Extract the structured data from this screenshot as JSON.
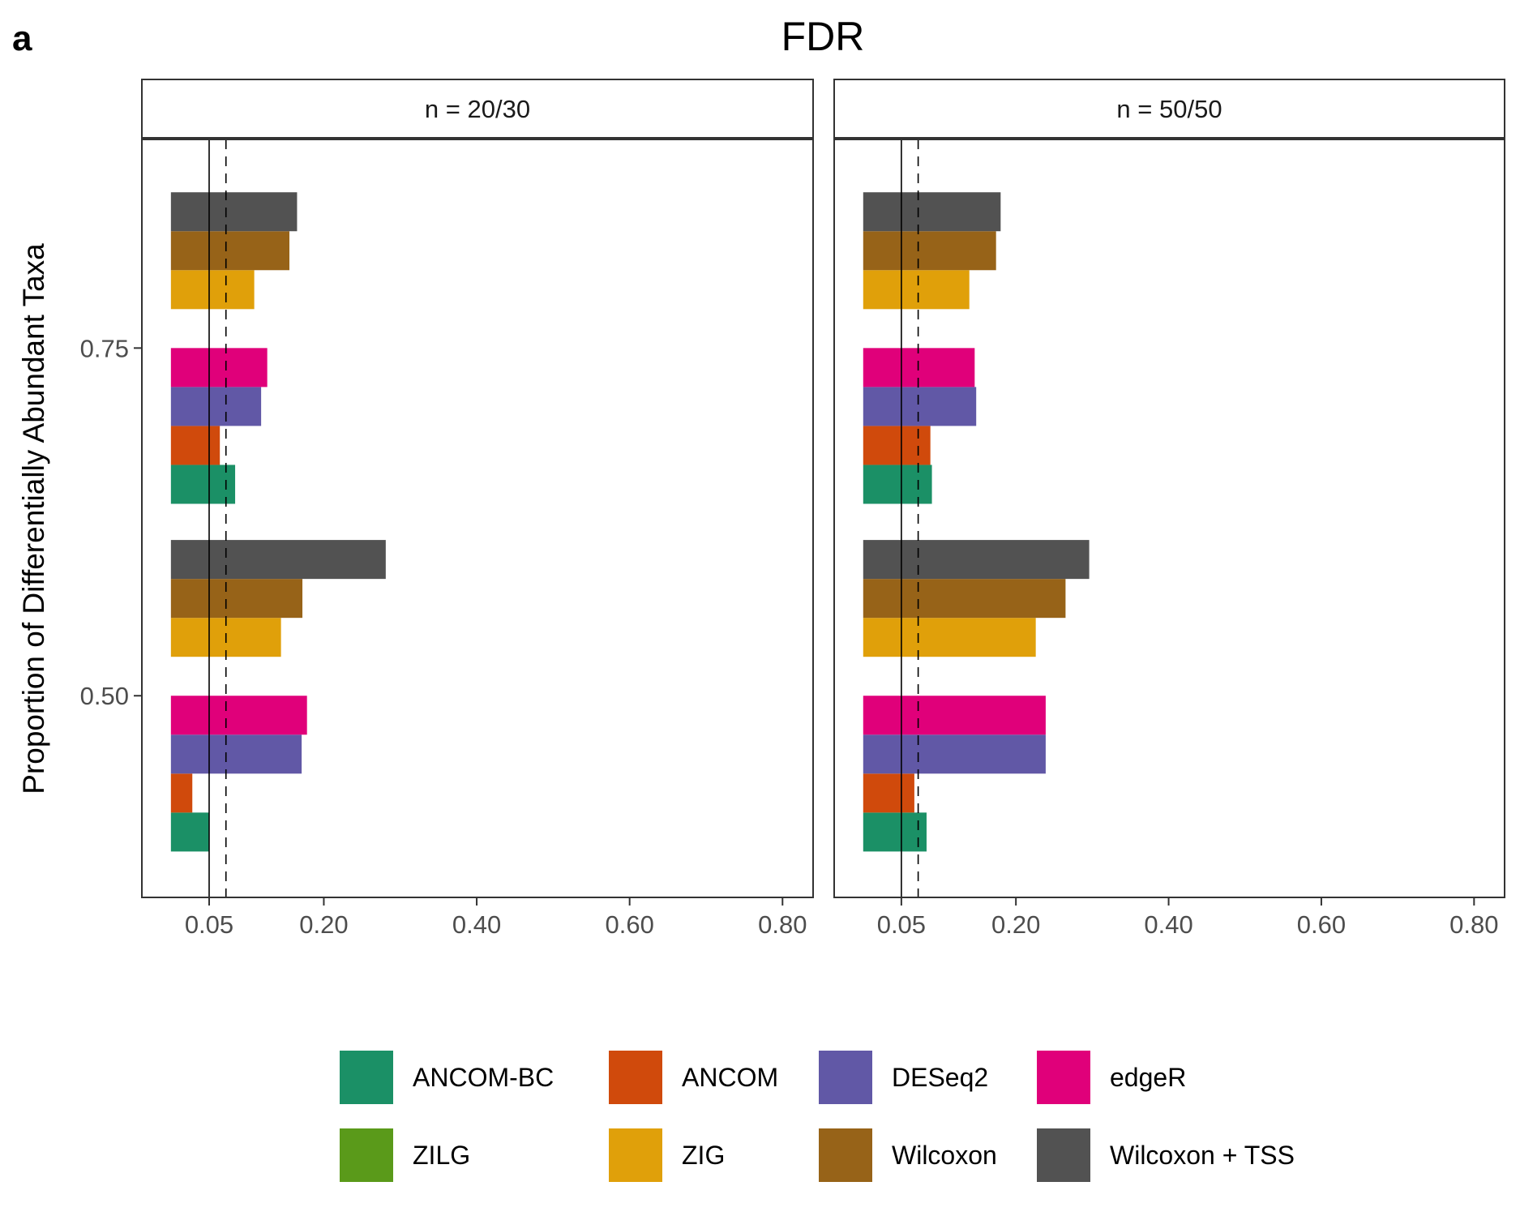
{
  "chart_data": {
    "type": "bar",
    "orientation": "horizontal",
    "tag": "a",
    "title": "FDR",
    "ylabel": "Proportion of Differentially Abundant Taxa",
    "xlabel": "",
    "x_ticks": [
      "0.05",
      "0.20",
      "0.40",
      "0.60",
      "0.80"
    ],
    "x_tick_values": [
      0.05,
      0.2,
      0.4,
      0.6,
      0.8
    ],
    "xlim": [
      -0.038,
      0.84
    ],
    "y_ticks": [
      "0.50",
      "0.75"
    ],
    "y_tick_values": [
      0.5,
      0.75
    ],
    "ylim": [
      0.355,
      0.9
    ],
    "bar_left": 0.0,
    "reference_lines": [
      {
        "value": 0.05,
        "style": "solid"
      },
      {
        "value": 0.072,
        "style": "dashed",
        "facet": "n = 20/30"
      },
      {
        "value": 0.072,
        "style": "dashed",
        "facet": "n = 50/50"
      }
    ],
    "dodge_width": 0.224,
    "methods": [
      "ANCOM-BC",
      "ANCOM",
      "DESeq2",
      "edgeR",
      "ZILG",
      "ZIG",
      "Wilcoxon",
      "Wilcoxon + TSS"
    ],
    "colors": {
      "ANCOM-BC": "#1b9066",
      "ANCOM": "#d04a0c",
      "DESeq2": "#6158a6",
      "edgeR": "#e0007a",
      "ZILG": "#5a9a1a",
      "ZIG": "#e0a00a",
      "Wilcoxon": "#976318",
      "Wilcoxon + TSS": "#525252"
    },
    "legend": {
      "position": "bottom",
      "columns": 4,
      "items": [
        "ANCOM-BC",
        "ANCOM",
        "DESeq2",
        "edgeR",
        "ZILG",
        "ZIG",
        "Wilcoxon",
        "Wilcoxon + TSS"
      ]
    },
    "facets": [
      {
        "label": "n = 20/30",
        "groups": [
          {
            "y": 0.5,
            "values": {
              "ANCOM-BC": 0.05,
              "ANCOM": 0.028,
              "ZILG": 0.0,
              "DESeq2": 0.171,
              "edgeR": 0.178,
              "ZIG": 0.144,
              "Wilcoxon": 0.172,
              "Wilcoxon + TSS": 0.281
            }
          },
          {
            "y": 0.75,
            "values": {
              "ANCOM-BC": 0.084,
              "ANCOM": 0.064,
              "ZILG": 0.0,
              "DESeq2": 0.118,
              "edgeR": 0.126,
              "ZIG": 0.109,
              "Wilcoxon": 0.155,
              "Wilcoxon + TSS": 0.165
            }
          }
        ]
      },
      {
        "label": "n = 50/50",
        "groups": [
          {
            "y": 0.5,
            "values": {
              "ANCOM-BC": 0.083,
              "ANCOM": 0.067,
              "ZILG": 0.0,
              "DESeq2": 0.239,
              "edgeR": 0.239,
              "ZIG": 0.226,
              "Wilcoxon": 0.265,
              "Wilcoxon + TSS": 0.296
            }
          },
          {
            "y": 0.75,
            "values": {
              "ANCOM-BC": 0.09,
              "ANCOM": 0.088,
              "ZILG": 0.0,
              "DESeq2": 0.148,
              "edgeR": 0.146,
              "ZIG": 0.139,
              "Wilcoxon": 0.174,
              "Wilcoxon + TSS": 0.18
            }
          }
        ]
      }
    ]
  }
}
